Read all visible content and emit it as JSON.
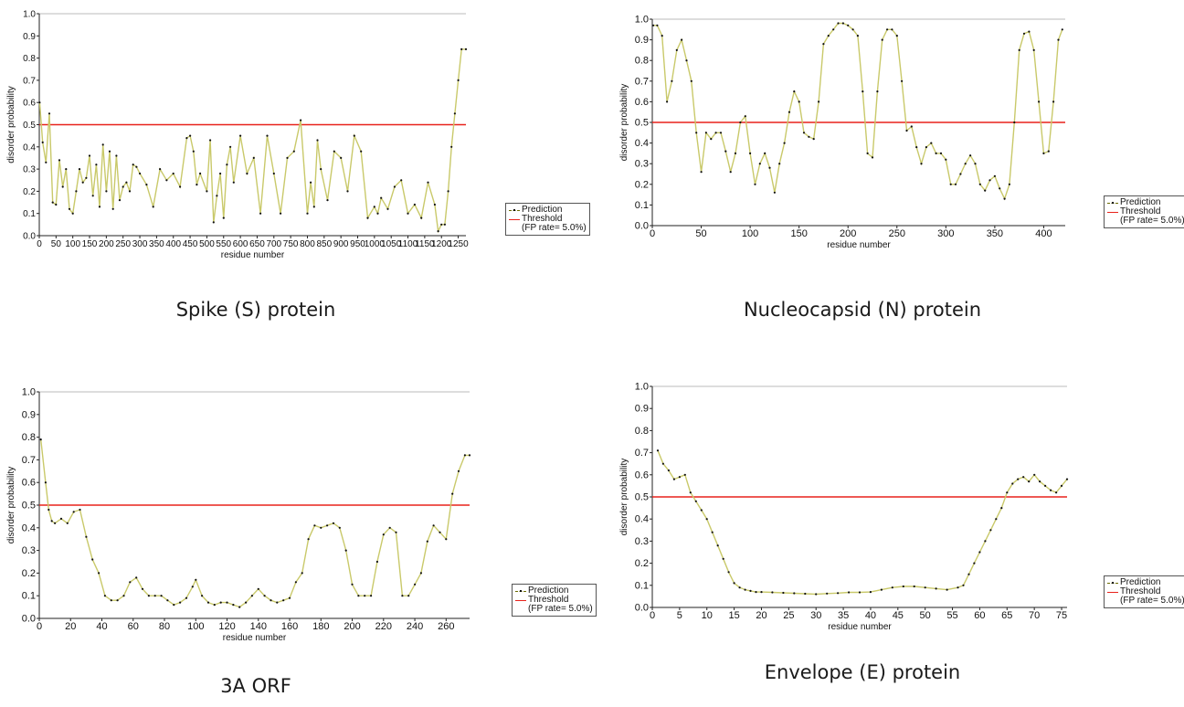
{
  "colors": {
    "threshold": "#e8221b",
    "prediction_dots": "#111111",
    "prediction_line": "#c9c96a",
    "axis": "#222222",
    "top_rule": "#bbbbbb"
  },
  "legend": {
    "prediction": "Prediction",
    "threshold": "Threshold",
    "fp_rate": "(FP rate= 5.0%)"
  },
  "chart_data": [
    {
      "type": "line",
      "caption": "Spike (S) protein",
      "xlabel": "residue number",
      "ylabel": "disorder probability",
      "xlim": [
        0,
        1273
      ],
      "ylim": [
        0,
        1.0
      ],
      "xticks": [
        "0",
        "50",
        "100",
        "150",
        "200",
        "250",
        "300",
        "350",
        "400",
        "450",
        "500",
        "550",
        "600",
        "650",
        "700",
        "750",
        "800",
        "850",
        "900",
        "950",
        "1000",
        "1050",
        "1100",
        "1150",
        "1200",
        "1250"
      ],
      "yticks": [
        "0.0",
        "0.1",
        "0.2",
        "0.3",
        "0.4",
        "0.5",
        "0.6",
        "0.7",
        "0.8",
        "0.9",
        "1.0"
      ],
      "threshold": 0.5,
      "series": [
        {
          "name": "Prediction",
          "x": [
            1,
            10,
            20,
            30,
            40,
            50,
            60,
            70,
            80,
            90,
            100,
            110,
            120,
            130,
            140,
            150,
            160,
            170,
            180,
            190,
            200,
            210,
            220,
            230,
            240,
            250,
            260,
            270,
            280,
            290,
            300,
            320,
            340,
            360,
            380,
            400,
            420,
            440,
            450,
            460,
            470,
            480,
            500,
            510,
            520,
            530,
            540,
            550,
            560,
            570,
            580,
            600,
            620,
            640,
            660,
            680,
            700,
            720,
            740,
            760,
            780,
            800,
            810,
            820,
            830,
            840,
            860,
            880,
            900,
            920,
            940,
            960,
            980,
            1000,
            1010,
            1020,
            1040,
            1060,
            1080,
            1100,
            1120,
            1140,
            1160,
            1180,
            1190,
            1200,
            1210,
            1220,
            1230,
            1240,
            1250,
            1260,
            1273
          ],
          "y": [
            0.6,
            0.42,
            0.33,
            0.55,
            0.15,
            0.14,
            0.34,
            0.22,
            0.3,
            0.12,
            0.1,
            0.2,
            0.3,
            0.24,
            0.26,
            0.36,
            0.18,
            0.32,
            0.13,
            0.41,
            0.2,
            0.38,
            0.12,
            0.36,
            0.16,
            0.22,
            0.24,
            0.2,
            0.32,
            0.31,
            0.28,
            0.23,
            0.13,
            0.3,
            0.25,
            0.28,
            0.22,
            0.44,
            0.45,
            0.38,
            0.23,
            0.28,
            0.2,
            0.43,
            0.06,
            0.18,
            0.28,
            0.08,
            0.32,
            0.4,
            0.24,
            0.45,
            0.28,
            0.35,
            0.1,
            0.45,
            0.28,
            0.1,
            0.35,
            0.38,
            0.52,
            0.1,
            0.24,
            0.13,
            0.43,
            0.3,
            0.16,
            0.38,
            0.35,
            0.2,
            0.45,
            0.38,
            0.08,
            0.13,
            0.1,
            0.17,
            0.12,
            0.22,
            0.25,
            0.1,
            0.14,
            0.08,
            0.24,
            0.14,
            0.02,
            0.05,
            0.05,
            0.2,
            0.4,
            0.55,
            0.7,
            0.84,
            0.84
          ]
        }
      ]
    },
    {
      "type": "line",
      "caption": "Nucleocapsid (N) protein",
      "xlabel": "residue number",
      "ylabel": "disorder probability",
      "xlim": [
        0,
        422
      ],
      "ylim": [
        0,
        1.0
      ],
      "xticks": [
        "0",
        "50",
        "100",
        "150",
        "200",
        "250",
        "300",
        "350",
        "400"
      ],
      "yticks": [
        "0.0",
        "0.1",
        "0.2",
        "0.3",
        "0.4",
        "0.5",
        "0.6",
        "0.7",
        "0.8",
        "0.9",
        "1.0"
      ],
      "threshold": 0.5,
      "series": [
        {
          "name": "Prediction",
          "x": [
            1,
            5,
            10,
            15,
            20,
            25,
            30,
            35,
            40,
            45,
            50,
            55,
            60,
            65,
            70,
            75,
            80,
            85,
            90,
            95,
            100,
            105,
            110,
            115,
            120,
            125,
            130,
            135,
            140,
            145,
            150,
            155,
            160,
            165,
            170,
            175,
            180,
            185,
            190,
            195,
            200,
            205,
            210,
            215,
            220,
            225,
            230,
            235,
            240,
            245,
            250,
            255,
            260,
            265,
            270,
            275,
            280,
            285,
            290,
            295,
            300,
            305,
            310,
            315,
            320,
            325,
            330,
            335,
            340,
            345,
            350,
            355,
            360,
            365,
            370,
            375,
            380,
            385,
            390,
            395,
            400,
            405,
            410,
            415,
            419
          ],
          "y": [
            0.97,
            0.97,
            0.92,
            0.6,
            0.7,
            0.85,
            0.9,
            0.8,
            0.7,
            0.45,
            0.26,
            0.45,
            0.42,
            0.45,
            0.45,
            0.36,
            0.26,
            0.35,
            0.5,
            0.53,
            0.35,
            0.2,
            0.3,
            0.35,
            0.28,
            0.16,
            0.3,
            0.4,
            0.55,
            0.65,
            0.6,
            0.45,
            0.43,
            0.42,
            0.6,
            0.88,
            0.92,
            0.95,
            0.98,
            0.98,
            0.97,
            0.95,
            0.92,
            0.65,
            0.35,
            0.33,
            0.65,
            0.9,
            0.95,
            0.95,
            0.92,
            0.7,
            0.46,
            0.48,
            0.38,
            0.3,
            0.38,
            0.4,
            0.35,
            0.35,
            0.32,
            0.2,
            0.2,
            0.25,
            0.3,
            0.34,
            0.3,
            0.2,
            0.17,
            0.22,
            0.24,
            0.18,
            0.13,
            0.2,
            0.5,
            0.85,
            0.93,
            0.94,
            0.85,
            0.6,
            0.35,
            0.36,
            0.6,
            0.9,
            0.95
          ]
        }
      ]
    },
    {
      "type": "line",
      "caption": "3A ORF",
      "xlabel": "residue number",
      "ylabel": "disorder probability",
      "xlim": [
        0,
        275
      ],
      "ylim": [
        0,
        1.0
      ],
      "xticks": [
        "0",
        "20",
        "40",
        "60",
        "80",
        "100",
        "120",
        "140",
        "160",
        "180",
        "200",
        "220",
        "240",
        "260"
      ],
      "yticks": [
        "0.0",
        "0.1",
        "0.2",
        "0.3",
        "0.4",
        "0.5",
        "0.6",
        "0.7",
        "0.8",
        "0.9",
        "1.0"
      ],
      "threshold": 0.5,
      "series": [
        {
          "name": "Prediction",
          "x": [
            1,
            4,
            6,
            8,
            10,
            14,
            18,
            22,
            26,
            30,
            34,
            38,
            42,
            46,
            50,
            54,
            58,
            62,
            66,
            70,
            74,
            78,
            82,
            86,
            90,
            94,
            98,
            100,
            104,
            108,
            112,
            116,
            120,
            124,
            128,
            132,
            136,
            140,
            144,
            148,
            152,
            156,
            160,
            164,
            168,
            172,
            176,
            180,
            184,
            188,
            192,
            196,
            200,
            204,
            208,
            212,
            216,
            220,
            224,
            228,
            232,
            236,
            240,
            244,
            248,
            252,
            256,
            260,
            264,
            268,
            272,
            275
          ],
          "y": [
            0.79,
            0.6,
            0.48,
            0.43,
            0.42,
            0.44,
            0.42,
            0.47,
            0.48,
            0.36,
            0.26,
            0.2,
            0.1,
            0.08,
            0.08,
            0.1,
            0.16,
            0.18,
            0.13,
            0.1,
            0.1,
            0.1,
            0.08,
            0.06,
            0.07,
            0.09,
            0.14,
            0.17,
            0.1,
            0.07,
            0.06,
            0.07,
            0.07,
            0.06,
            0.05,
            0.07,
            0.1,
            0.13,
            0.1,
            0.08,
            0.07,
            0.08,
            0.09,
            0.16,
            0.2,
            0.35,
            0.41,
            0.4,
            0.41,
            0.42,
            0.4,
            0.3,
            0.15,
            0.1,
            0.1,
            0.1,
            0.25,
            0.37,
            0.4,
            0.38,
            0.1,
            0.1,
            0.15,
            0.2,
            0.34,
            0.41,
            0.38,
            0.35,
            0.55,
            0.65,
            0.72,
            0.72
          ]
        }
      ]
    },
    {
      "type": "line",
      "caption": "Envelope (E) protein",
      "xlabel": "residue number",
      "ylabel": "disorder probability",
      "xlim": [
        0,
        76
      ],
      "ylim": [
        0,
        1.0
      ],
      "xticks": [
        "0",
        "5",
        "10",
        "15",
        "20",
        "25",
        "30",
        "35",
        "40",
        "45",
        "50",
        "55",
        "60",
        "65",
        "70",
        "75"
      ],
      "yticks": [
        "0.0",
        "0.1",
        "0.2",
        "0.3",
        "0.4",
        "0.5",
        "0.6",
        "0.7",
        "0.8",
        "0.9",
        "1.0"
      ],
      "threshold": 0.5,
      "series": [
        {
          "name": "Prediction",
          "x": [
            1,
            2,
            3,
            4,
            5,
            6,
            7,
            8,
            9,
            10,
            11,
            12,
            13,
            14,
            15,
            16,
            17,
            18,
            19,
            20,
            22,
            24,
            26,
            28,
            30,
            32,
            34,
            36,
            38,
            40,
            42,
            44,
            46,
            48,
            50,
            52,
            54,
            56,
            57,
            58,
            59,
            60,
            61,
            62,
            63,
            64,
            65,
            66,
            67,
            68,
            69,
            70,
            71,
            72,
            73,
            74,
            75,
            76
          ],
          "y": [
            0.71,
            0.65,
            0.62,
            0.58,
            0.59,
            0.6,
            0.52,
            0.48,
            0.44,
            0.4,
            0.34,
            0.28,
            0.22,
            0.16,
            0.11,
            0.09,
            0.08,
            0.075,
            0.07,
            0.07,
            0.068,
            0.066,
            0.064,
            0.062,
            0.06,
            0.063,
            0.065,
            0.068,
            0.068,
            0.07,
            0.08,
            0.09,
            0.095,
            0.095,
            0.09,
            0.085,
            0.08,
            0.09,
            0.1,
            0.15,
            0.2,
            0.25,
            0.3,
            0.35,
            0.4,
            0.45,
            0.52,
            0.56,
            0.58,
            0.59,
            0.57,
            0.6,
            0.57,
            0.55,
            0.53,
            0.52,
            0.55,
            0.58
          ]
        }
      ]
    }
  ]
}
